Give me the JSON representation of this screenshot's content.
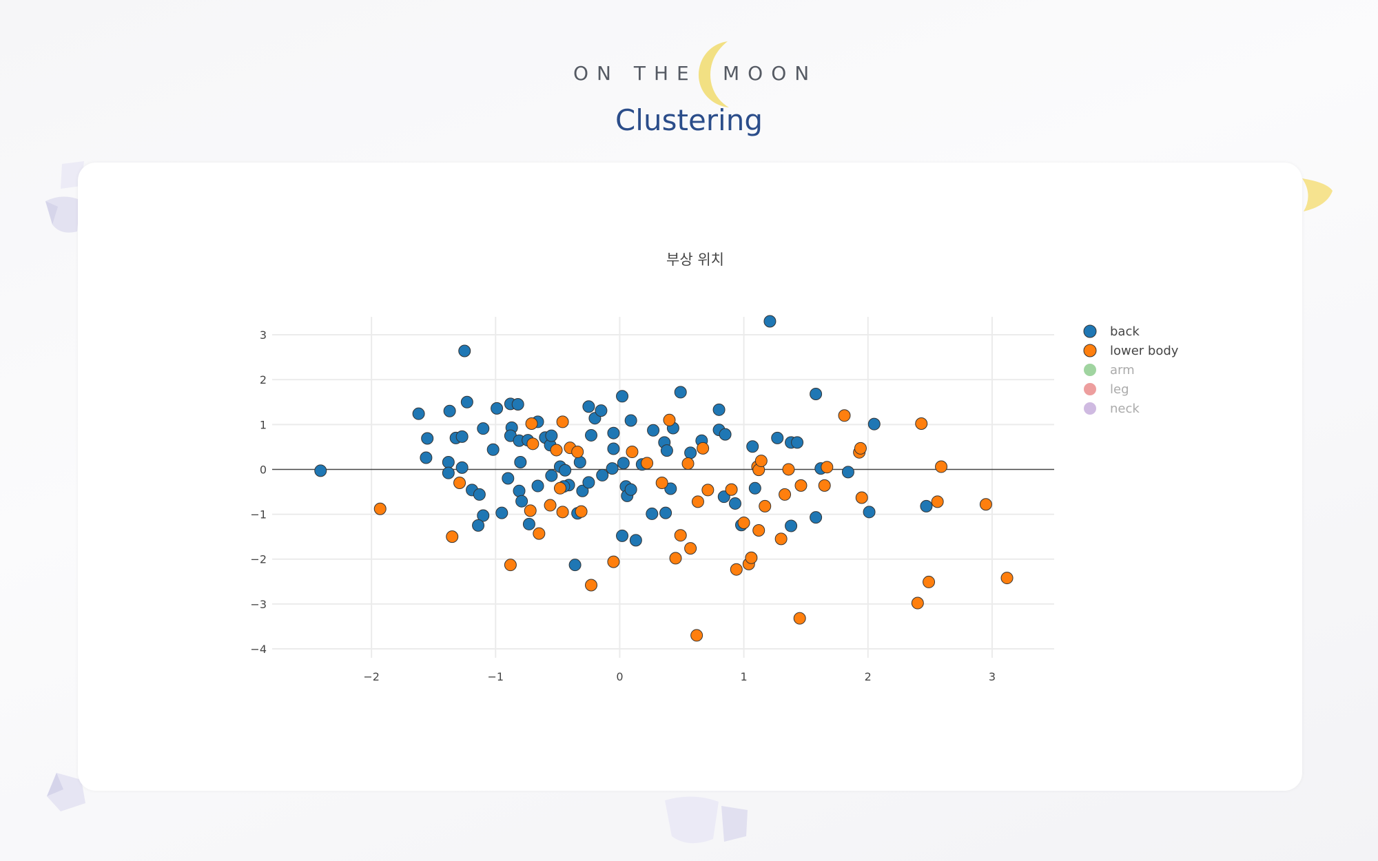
{
  "logo": {
    "left_text": "ON THE",
    "right_text": "MOON",
    "moon_color": "#f2e083"
  },
  "page": {
    "title": "Clustering"
  },
  "chart_data": {
    "type": "scatter",
    "title": "부상 위치",
    "xlabel": "",
    "ylabel": "",
    "xlim": [
      -2.8,
      3.5
    ],
    "ylim": [
      -4.2,
      3.4
    ],
    "x_ticks": [
      -2,
      -1,
      0,
      1,
      2,
      3
    ],
    "y_ticks": [
      3,
      2,
      1,
      0,
      -1,
      -2,
      -3,
      -4
    ],
    "grid": true,
    "legend_position": "right",
    "series": [
      {
        "name": "back",
        "color": "#1f77b4",
        "visible": true,
        "points": [
          [
            -2.41,
            -0.03
          ],
          [
            -1.25,
            2.64
          ],
          [
            -1.62,
            1.24
          ],
          [
            -1.37,
            1.3
          ],
          [
            -1.23,
            1.5
          ],
          [
            -1.55,
            0.69
          ],
          [
            -1.56,
            0.26
          ],
          [
            -1.32,
            0.7
          ],
          [
            -1.27,
            0.73
          ],
          [
            -1.38,
            0.16
          ],
          [
            -1.38,
            -0.08
          ],
          [
            -1.27,
            0.04
          ],
          [
            -1.19,
            -0.46
          ],
          [
            -1.13,
            -0.56
          ],
          [
            -1.1,
            -1.03
          ],
          [
            -1.14,
            -1.25
          ],
          [
            -1.1,
            0.91
          ],
          [
            -0.99,
            1.36
          ],
          [
            -1.02,
            0.44
          ],
          [
            -0.88,
            1.46
          ],
          [
            -0.82,
            1.45
          ],
          [
            -0.87,
            0.93
          ],
          [
            -0.88,
            0.75
          ],
          [
            -0.81,
            0.64
          ],
          [
            -0.74,
            0.65
          ],
          [
            -0.8,
            0.16
          ],
          [
            -0.9,
            -0.2
          ],
          [
            -0.81,
            -0.48
          ],
          [
            -0.79,
            -0.71
          ],
          [
            -0.95,
            -0.97
          ],
          [
            -0.73,
            -1.22
          ],
          [
            -0.66,
            1.06
          ],
          [
            -0.66,
            -0.37
          ],
          [
            -0.6,
            0.71
          ],
          [
            -0.56,
            0.54
          ],
          [
            -0.55,
            0.75
          ],
          [
            -0.55,
            -0.14
          ],
          [
            -0.48,
            0.06
          ],
          [
            -0.44,
            -0.02
          ],
          [
            -0.41,
            -0.35
          ],
          [
            -0.36,
            -2.13
          ],
          [
            -0.34,
            -0.98
          ],
          [
            -0.32,
            0.16
          ],
          [
            -0.3,
            -0.48
          ],
          [
            -0.25,
            1.4
          ],
          [
            -0.23,
            0.76
          ],
          [
            -0.25,
            -0.29
          ],
          [
            -0.2,
            1.14
          ],
          [
            -0.15,
            1.31
          ],
          [
            -0.14,
            -0.13
          ],
          [
            -0.06,
            0.02
          ],
          [
            -0.05,
            0.46
          ],
          [
            -0.05,
            0.81
          ],
          [
            0.02,
            1.63
          ],
          [
            0.03,
            0.14
          ],
          [
            0.05,
            -0.38
          ],
          [
            0.06,
            -0.59
          ],
          [
            0.09,
            1.09
          ],
          [
            0.09,
            -0.45
          ],
          [
            0.13,
            -1.58
          ],
          [
            0.02,
            -1.48
          ],
          [
            0.18,
            0.11
          ],
          [
            0.27,
            0.87
          ],
          [
            0.26,
            -0.99
          ],
          [
            0.36,
            0.6
          ],
          [
            0.38,
            0.42
          ],
          [
            0.37,
            -0.97
          ],
          [
            0.41,
            -0.43
          ],
          [
            0.43,
            0.92
          ],
          [
            0.49,
            1.72
          ],
          [
            0.57,
            0.37
          ],
          [
            0.66,
            0.64
          ],
          [
            0.8,
            1.33
          ],
          [
            0.8,
            0.88
          ],
          [
            0.84,
            -0.61
          ],
          [
            0.85,
            0.78
          ],
          [
            0.93,
            -0.76
          ],
          [
            0.98,
            -1.24
          ],
          [
            1.07,
            0.51
          ],
          [
            1.09,
            -0.42
          ],
          [
            1.21,
            3.3
          ],
          [
            1.27,
            0.7
          ],
          [
            1.38,
            0.6
          ],
          [
            1.43,
            0.6
          ],
          [
            1.38,
            -1.26
          ],
          [
            1.58,
            1.68
          ],
          [
            1.58,
            -1.07
          ],
          [
            1.62,
            0.02
          ],
          [
            1.84,
            -0.06
          ],
          [
            2.01,
            -0.95
          ],
          [
            2.05,
            1.01
          ],
          [
            2.47,
            -0.82
          ],
          [
            -0.45,
            -0.38
          ]
        ]
      },
      {
        "name": "lower body",
        "color": "#ff7f0e",
        "visible": true,
        "points": [
          [
            -1.93,
            -0.88
          ],
          [
            -1.35,
            -1.5
          ],
          [
            -1.29,
            -0.3
          ],
          [
            -0.88,
            -2.13
          ],
          [
            -0.71,
            1.02
          ],
          [
            -0.7,
            0.57
          ],
          [
            -0.72,
            -0.92
          ],
          [
            -0.65,
            -1.43
          ],
          [
            -0.56,
            -0.8
          ],
          [
            -0.51,
            0.43
          ],
          [
            -0.48,
            -0.42
          ],
          [
            -0.46,
            -0.95
          ],
          [
            -0.46,
            1.06
          ],
          [
            -0.4,
            0.48
          ],
          [
            -0.34,
            0.39
          ],
          [
            -0.31,
            -0.94
          ],
          [
            -0.23,
            -2.58
          ],
          [
            -0.05,
            -2.06
          ],
          [
            0.1,
            0.39
          ],
          [
            0.22,
            0.14
          ],
          [
            0.34,
            -0.3
          ],
          [
            0.4,
            1.1
          ],
          [
            0.45,
            -1.98
          ],
          [
            0.49,
            -1.47
          ],
          [
            0.55,
            0.13
          ],
          [
            0.57,
            -1.76
          ],
          [
            0.62,
            -3.7
          ],
          [
            0.63,
            -0.72
          ],
          [
            0.67,
            0.47
          ],
          [
            0.71,
            -0.46
          ],
          [
            0.9,
            -0.45
          ],
          [
            0.94,
            -2.23
          ],
          [
            1.0,
            -1.19
          ],
          [
            1.04,
            -2.11
          ],
          [
            1.06,
            -1.97
          ],
          [
            1.11,
            0.06
          ],
          [
            1.12,
            -0.01
          ],
          [
            1.14,
            0.19
          ],
          [
            1.12,
            -1.36
          ],
          [
            1.17,
            -0.82
          ],
          [
            1.3,
            -1.55
          ],
          [
            1.33,
            -0.56
          ],
          [
            1.36,
            0.0
          ],
          [
            1.45,
            -3.32
          ],
          [
            1.46,
            -0.36
          ],
          [
            1.65,
            -0.36
          ],
          [
            1.67,
            0.05
          ],
          [
            1.81,
            1.2
          ],
          [
            1.93,
            0.38
          ],
          [
            1.94,
            0.47
          ],
          [
            1.95,
            -0.63
          ],
          [
            2.4,
            -2.98
          ],
          [
            2.43,
            1.02
          ],
          [
            2.49,
            -2.51
          ],
          [
            2.56,
            -0.72
          ],
          [
            2.59,
            0.06
          ],
          [
            2.95,
            -0.78
          ],
          [
            3.12,
            -2.42
          ]
        ]
      },
      {
        "name": "arm",
        "color": "#2ca02c",
        "visible": false,
        "points": []
      },
      {
        "name": "leg",
        "color": "#d62728",
        "visible": false,
        "points": []
      },
      {
        "name": "neck",
        "color": "#9467bd",
        "visible": false,
        "points": []
      }
    ]
  }
}
